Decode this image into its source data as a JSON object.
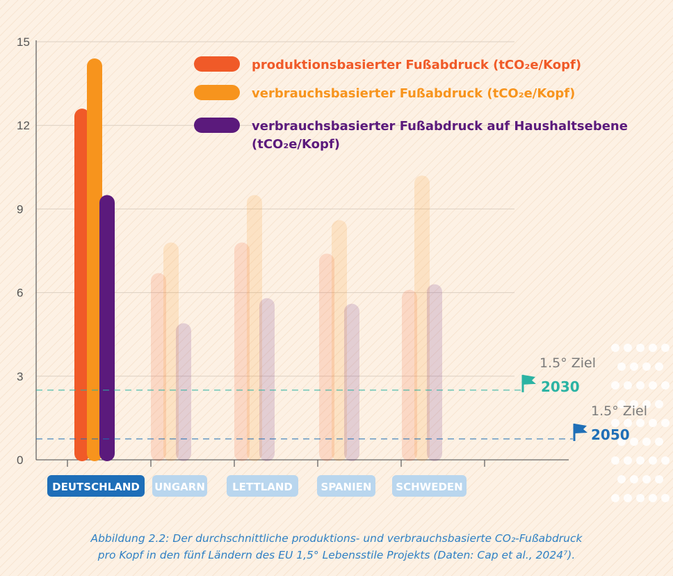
{
  "chart_data": {
    "type": "bar",
    "categories": [
      "DEUTSCHLAND",
      "UNGARN",
      "LETTLAND",
      "SPANIEN",
      "SCHWEDEN"
    ],
    "highlighted_category": "DEUTSCHLAND",
    "ylim": [
      0,
      15
    ],
    "yticks": [
      "0",
      "3",
      "6",
      "9",
      "12",
      "15"
    ],
    "series": [
      {
        "name": "produktionsbasierter Fußabdruck (tCO₂e/Kopf)",
        "color": "#f05a28",
        "values": [
          12.6,
          6.7,
          7.8,
          7.4,
          6.1
        ]
      },
      {
        "name": "verbrauchsbasierter Fußabdruck (tCO₂e/Kopf)",
        "color": "#f7941d",
        "values": [
          14.4,
          7.8,
          9.5,
          8.6,
          10.2
        ]
      },
      {
        "name": "verbrauchsbasierter Fußabdruck auf Haushaltsebene (tCO₂e/Kopf)",
        "color": "#5b1a7c",
        "values": [
          9.5,
          4.9,
          5.8,
          5.6,
          6.3
        ]
      }
    ],
    "targets": [
      {
        "label": "1.5° Ziel",
        "year": "2030",
        "value": 2.5,
        "color": "#2bb3a3"
      },
      {
        "label": "1.5° Ziel",
        "year": "2050",
        "value": 0.75,
        "color": "#1f6fb7"
      }
    ],
    "grid": true
  },
  "legend": {
    "items": [
      {
        "text": "produktionsbasierter Fußabdruck (tCO₂e/Kopf)",
        "color": "#f05a28"
      },
      {
        "text": "verbrauchsbasierter Fußabdruck (tCO₂e/Kopf)",
        "color": "#f7941d"
      },
      {
        "text_line1": "verbrauchsbasierter Fußabdruck auf Haushaltsebene",
        "text_line2": "(tCO₂e/Kopf)",
        "color": "#5b1a7c"
      }
    ]
  },
  "caption": {
    "line1": "Abbildung 2.2: Der durchschnittliche produktions- und verbrauchsbasierte CO₂-Fußabdruck",
    "line2": "pro Kopf in den fünf Ländern des EU 1,5° Lebensstile Projekts (Daten: Cap et al., 2024⁷)."
  }
}
